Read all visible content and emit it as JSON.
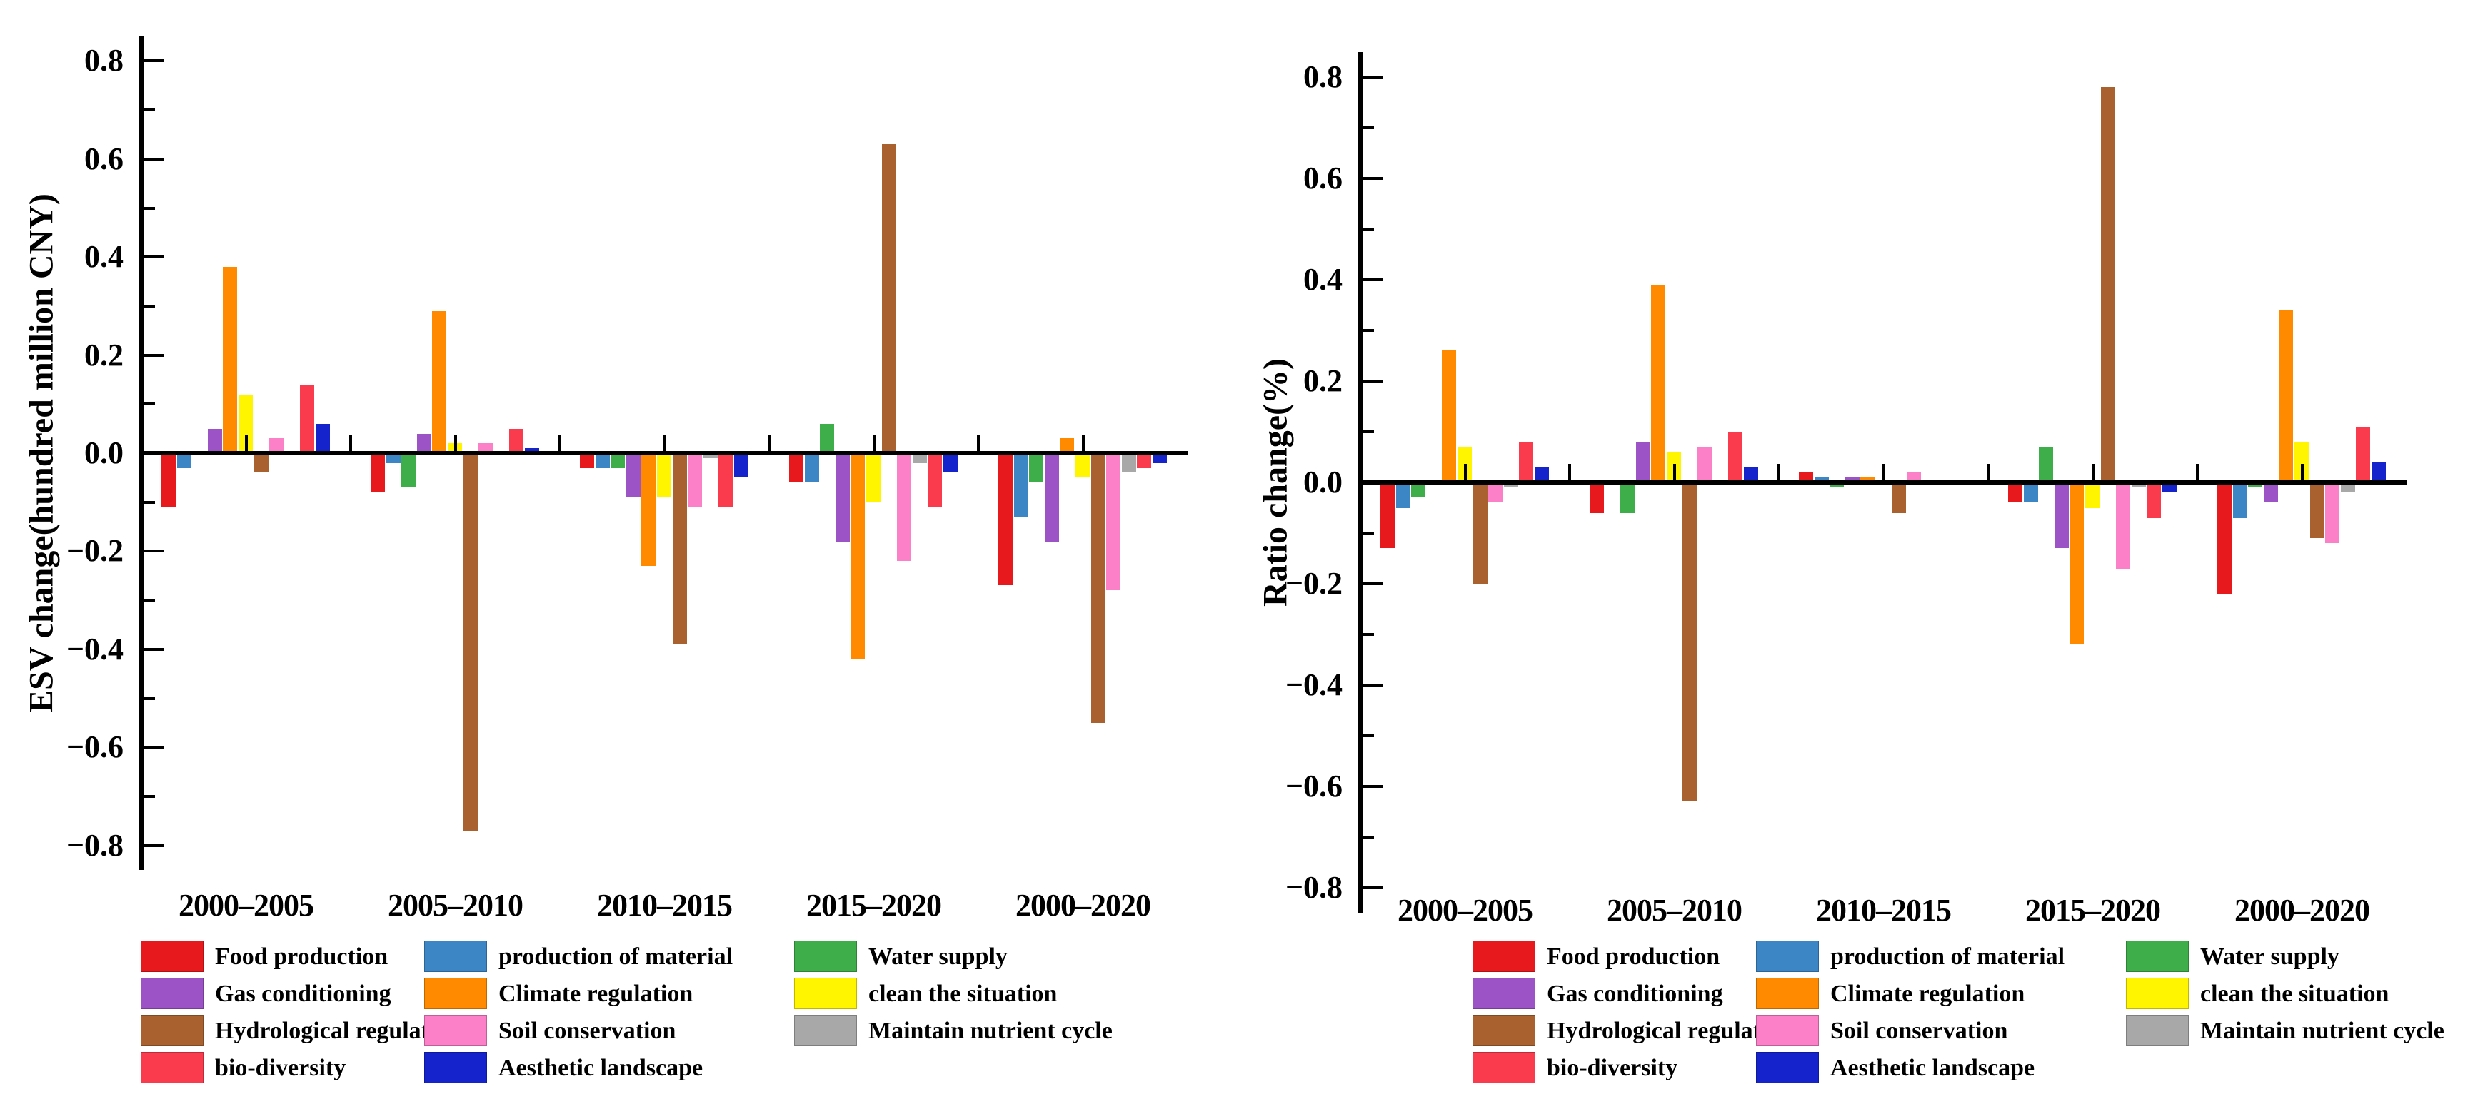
{
  "page": {
    "background": "#ffffff"
  },
  "chart_data": [
    {
      "type": "bar",
      "title": "",
      "xlabel": "",
      "ylabel": "ESV change(hundred million CNY)",
      "ylim": [
        -0.8,
        0.8
      ],
      "ytick_step": 0.2,
      "grid": false,
      "legend_position": "bottom",
      "ytick_labels": [
        "0.8",
        "0.6",
        "0.4",
        "0.2",
        "0.0",
        "−0.2",
        "−0.4",
        "−0.6",
        "−0.8"
      ],
      "categories": [
        "2000–2005",
        "2005–2010",
        "2010–2015",
        "2015–2020",
        "2000–2020"
      ],
      "series": [
        {
          "name": "Food production",
          "color": "#E8191C",
          "values": [
            -0.11,
            -0.08,
            -0.03,
            -0.06,
            -0.27
          ]
        },
        {
          "name": "production of material",
          "color": "#3C86C6",
          "values": [
            -0.03,
            -0.02,
            -0.03,
            -0.06,
            -0.13
          ]
        },
        {
          "name": "Water supply",
          "color": "#3DAE49",
          "values": [
            0.0,
            -0.07,
            -0.03,
            0.06,
            -0.06
          ]
        },
        {
          "name": "Gas conditioning",
          "color": "#9C53C6",
          "values": [
            0.05,
            0.04,
            -0.09,
            -0.18,
            -0.18
          ]
        },
        {
          "name": "Climate regulation",
          "color": "#FF8A00",
          "values": [
            0.38,
            0.29,
            -0.23,
            -0.42,
            0.03
          ]
        },
        {
          "name": "clean the situation",
          "color": "#FFF500",
          "values": [
            0.12,
            0.02,
            -0.09,
            -0.1,
            -0.05
          ]
        },
        {
          "name": "Hydrological regulation",
          "color": "#A9622F",
          "values": [
            -0.04,
            -0.77,
            -0.39,
            0.63,
            -0.55
          ]
        },
        {
          "name": "Soil conservation",
          "color": "#FC80C8",
          "values": [
            0.03,
            0.02,
            -0.11,
            -0.22,
            -0.28
          ]
        },
        {
          "name": "Maintain nutrient cycle",
          "color": "#A8A8A8",
          "values": [
            0.0,
            0.0,
            -0.01,
            -0.02,
            -0.04
          ]
        },
        {
          "name": "bio-diversity",
          "color": "#FA3B4E",
          "values": [
            0.14,
            0.05,
            -0.11,
            -0.11,
            -0.03
          ]
        },
        {
          "name": "Aesthetic landscape",
          "color": "#1423CB",
          "values": [
            0.06,
            0.01,
            -0.05,
            -0.04,
            -0.02
          ]
        }
      ]
    },
    {
      "type": "bar",
      "title": "",
      "xlabel": "",
      "ylabel": "Ratio change(%)",
      "ylim": [
        -0.8,
        0.8
      ],
      "ytick_step": 0.2,
      "grid": false,
      "legend_position": "bottom",
      "ytick_labels": [
        "0.8",
        "0.6",
        "0.4",
        "0.2",
        "0.0",
        "−0.2",
        "−0.4",
        "−0.6",
        "−0.8"
      ],
      "categories": [
        "2000–2005",
        "2005–2010",
        "2010–2015",
        "2015–2020",
        "2000–2020"
      ],
      "series": [
        {
          "name": "Food production",
          "color": "#E8191C",
          "values": [
            -0.13,
            -0.06,
            0.02,
            -0.04,
            -0.22
          ]
        },
        {
          "name": "production of material",
          "color": "#3C86C6",
          "values": [
            -0.05,
            0.0,
            0.01,
            -0.04,
            -0.07
          ]
        },
        {
          "name": "Water supply",
          "color": "#3DAE49",
          "values": [
            -0.03,
            -0.06,
            -0.01,
            0.07,
            -0.01
          ]
        },
        {
          "name": "Gas conditioning",
          "color": "#9C53C6",
          "values": [
            0.0,
            0.08,
            0.01,
            -0.13,
            -0.04
          ]
        },
        {
          "name": "Climate regulation",
          "color": "#FF8A00",
          "values": [
            0.26,
            0.39,
            0.01,
            -0.32,
            0.34
          ]
        },
        {
          "name": "clean the situation",
          "color": "#FFF500",
          "values": [
            0.07,
            0.06,
            0.0,
            -0.05,
            0.08
          ]
        },
        {
          "name": "Hydrological regulation",
          "color": "#A9622F",
          "values": [
            -0.2,
            -0.63,
            -0.06,
            0.78,
            -0.11
          ]
        },
        {
          "name": "Soil conservation",
          "color": "#FC80C8",
          "values": [
            -0.04,
            0.07,
            0.02,
            -0.17,
            -0.12
          ]
        },
        {
          "name": "Maintain nutrient cycle",
          "color": "#A8A8A8",
          "values": [
            -0.01,
            0.0,
            0.0,
            -0.01,
            -0.02
          ]
        },
        {
          "name": "bio-diversity",
          "color": "#FA3B4E",
          "values": [
            0.08,
            0.1,
            0.0,
            -0.07,
            0.11
          ]
        },
        {
          "name": "Aesthetic landscape",
          "color": "#1423CB",
          "values": [
            0.03,
            0.03,
            0.0,
            -0.02,
            0.04
          ]
        }
      ]
    }
  ],
  "legend": {
    "columns": [
      [
        "Food production",
        "Gas conditioning",
        "Hydrological regulation",
        "bio-diversity"
      ],
      [
        "production of material",
        "Climate regulation",
        "Soil conservation",
        "Aesthetic landscape"
      ],
      [
        "Water supply",
        "clean the situation",
        "Maintain nutrient cycle"
      ]
    ]
  }
}
